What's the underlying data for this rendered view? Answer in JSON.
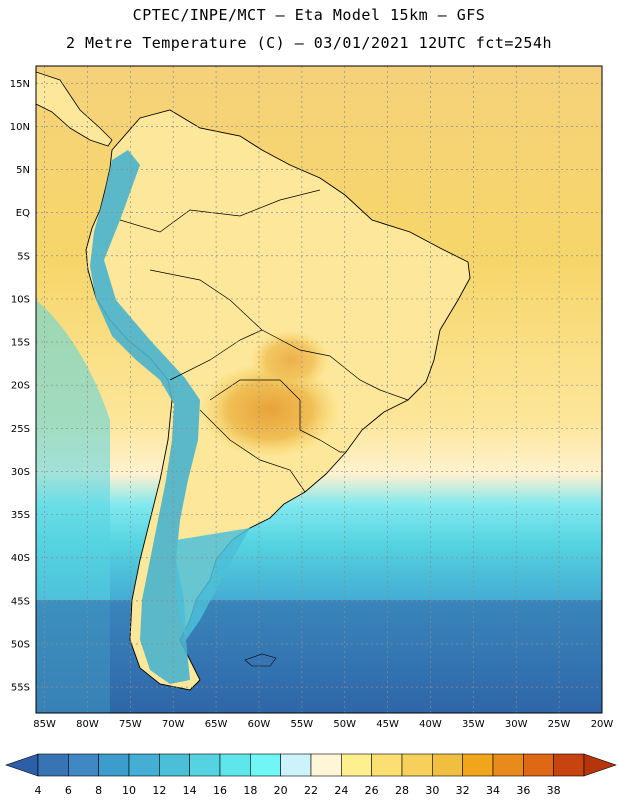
{
  "header": {
    "title_line1": "CPTEC/INPE/MCT  –   Eta Model 15km  –  GFS",
    "title_line2": "2 Metre Temperature (C) – 03/01/2021 12UTC fct=254h"
  },
  "map": {
    "lat_ticks": [
      "15N",
      "10N",
      "5N",
      "EQ",
      "5S",
      "10S",
      "15S",
      "20S",
      "25S",
      "30S",
      "35S",
      "40S",
      "45S",
      "50S",
      "55S"
    ],
    "lon_ticks": [
      "85W",
      "80W",
      "75W",
      "70W",
      "65W",
      "60W",
      "55W",
      "50W",
      "45W",
      "40W",
      "35W",
      "30W",
      "25W",
      "20W"
    ],
    "lon_range_deg": [
      -86,
      -20
    ],
    "lat_range_deg": [
      -58,
      17
    ],
    "colors": {
      "ocean_tropical": "#f6d66a",
      "ocean_north": "#f5d27a",
      "land_base": "#fde79a",
      "hot_core": "#e8a33a",
      "hot_mid": "#f0bf55",
      "andes_cold": "#49b3cd",
      "border": "#000000",
      "grid": "#8c8c8c"
    }
  },
  "legend": {
    "values": [
      "4",
      "6",
      "8",
      "10",
      "12",
      "14",
      "16",
      "18",
      "20",
      "22",
      "24",
      "26",
      "28",
      "30",
      "32",
      "34",
      "36",
      "38"
    ],
    "colors": [
      "#3874b3",
      "#3f88c4",
      "#3c9ccc",
      "#45aed4",
      "#4cbfd8",
      "#55d3e0",
      "#5ee6ea",
      "#71f6f6",
      "#ccf3fb",
      "#fff6d8",
      "#fef08e",
      "#fbdf73",
      "#f6d05a",
      "#f0bf40",
      "#f0a51a",
      "#e88a1c",
      "#de6814",
      "#c74410"
    ],
    "arrow_low_color": "#2c5fa8",
    "arrow_high_color": "#b5360a"
  }
}
